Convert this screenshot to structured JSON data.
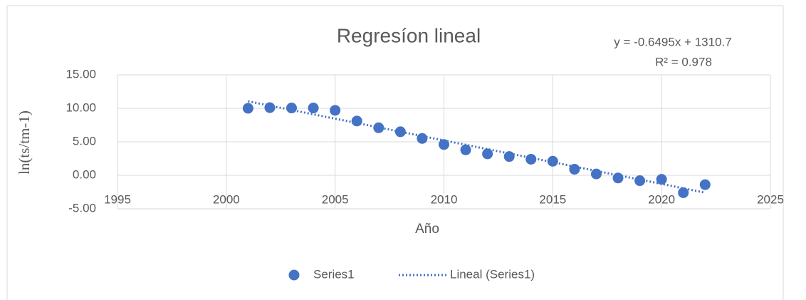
{
  "chart_data": {
    "type": "scatter",
    "title": "Regresíon lineal",
    "xlabel": "Año",
    "ylabel": "ln(ts/tm-1)",
    "series": [
      {
        "name": "Series1",
        "color": "#4472c4",
        "x": [
          2001,
          2002,
          2003,
          2004,
          2005,
          2006,
          2007,
          2008,
          2009,
          2010,
          2011,
          2012,
          2013,
          2014,
          2015,
          2016,
          2017,
          2018,
          2019,
          2020,
          2021,
          2022
        ],
        "values": [
          10.0,
          10.1,
          10.05,
          10.05,
          9.7,
          8.1,
          7.1,
          6.5,
          5.5,
          4.6,
          3.8,
          3.2,
          2.8,
          2.4,
          2.1,
          0.9,
          0.2,
          -0.4,
          -0.8,
          -0.6,
          -2.6,
          -1.4
        ]
      }
    ],
    "trendline": {
      "name": "Lineal (Series1)",
      "color": "#4472c4",
      "x": [
        2001,
        2022
      ],
      "values": [
        11.05,
        -2.59
      ],
      "equation": "y = -0.6495x + 1310.7",
      "r2": "R² = 0.978"
    },
    "xlim": [
      1995,
      2025
    ],
    "xticks": [
      1995,
      2000,
      2005,
      2010,
      2015,
      2020,
      2025
    ],
    "ylim": [
      -5,
      15
    ],
    "yticks": [
      {
        "value": -5,
        "label": "-5.00"
      },
      {
        "value": 0,
        "label": "0.00"
      },
      {
        "value": 5,
        "label": "5.00"
      },
      {
        "value": 10,
        "label": "10.00"
      },
      {
        "value": 15,
        "label": "15.00"
      }
    ],
    "grid": true,
    "legend": "bottom"
  }
}
